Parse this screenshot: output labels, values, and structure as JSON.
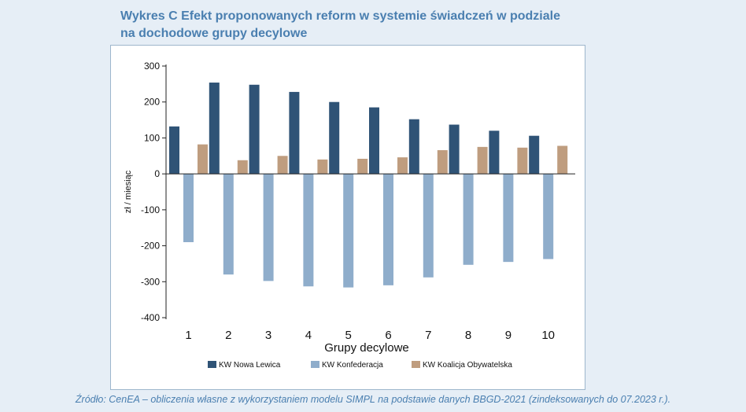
{
  "header": {
    "title_line1": "Wykres C Efekt proponowanych reform w systemie świadczeń w podziale",
    "title_line2": "na dochodowe grupy decylowe"
  },
  "footer": {
    "source": "Źródło: CenEA – obliczenia własne z wykorzystaniem modelu SIMPL na podstawie danych BBGD-2021 (zindeksowanych do 07.2023 r.)."
  },
  "colors": {
    "page_background": "#e6eef6",
    "title_text": "#4a7fb0",
    "series": [
      "#2f5376",
      "#8fadcb",
      "#bf9d7f"
    ]
  },
  "chart_data": {
    "type": "bar",
    "xlabel": "Grupy decylowe",
    "ylabel": "zł / miesiąc",
    "ylim": [
      -400,
      300
    ],
    "yticks": [
      300,
      200,
      100,
      0,
      -100,
      -200,
      -300,
      -400
    ],
    "categories": [
      "1",
      "2",
      "3",
      "4",
      "5",
      "6",
      "7",
      "8",
      "9",
      "10"
    ],
    "grid": false,
    "legend_position": "bottom",
    "series": [
      {
        "name": "KW Nowa Lewica",
        "values": [
          132,
          254,
          248,
          228,
          200,
          185,
          152,
          137,
          120,
          106
        ]
      },
      {
        "name": "KW Konfederacja",
        "values": [
          -190,
          -280,
          -298,
          -313,
          -316,
          -310,
          -288,
          -253,
          -245,
          -237
        ]
      },
      {
        "name": "KW Koalicja Obywatelska",
        "values": [
          82,
          38,
          50,
          40,
          42,
          46,
          66,
          75,
          73,
          78
        ]
      }
    ]
  }
}
